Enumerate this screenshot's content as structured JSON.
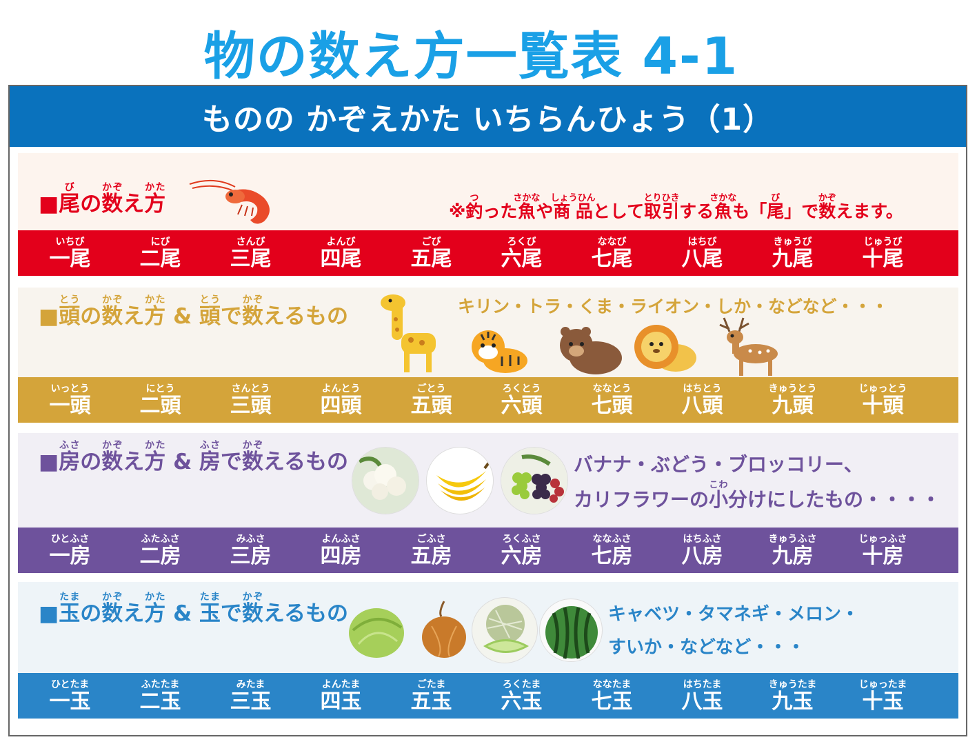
{
  "title": "物の数え方一覧表 4-1",
  "banner": "ものの かぞえかた いちらんひょう（1）",
  "colors": {
    "red": "#e3001b",
    "gold": "#d4a43a",
    "purple": "#6e529c",
    "blue": "#2a85c8"
  },
  "sections": {
    "bi": {
      "heading_mark": "■",
      "heading_parts": [
        {
          "k": "尾",
          "r": "び"
        },
        {
          "k": "の"
        },
        {
          "k": "数",
          "r": "かぞ"
        },
        {
          "k": "え"
        },
        {
          "k": "方",
          "r": "かた"
        }
      ],
      "note_parts": [
        {
          "k": "※"
        },
        {
          "k": "釣",
          "r": "つ"
        },
        {
          "k": "った"
        },
        {
          "k": "魚",
          "r": "さかな"
        },
        {
          "k": "や"
        },
        {
          "k": "商品",
          "r": "しょうひん"
        },
        {
          "k": "として"
        },
        {
          "k": "取引",
          "r": "とりひき"
        },
        {
          "k": "する"
        },
        {
          "k": "魚",
          "r": "さかな"
        },
        {
          "k": "も「"
        },
        {
          "k": "尾",
          "r": "び"
        },
        {
          "k": "」で"
        },
        {
          "k": "数",
          "r": "かぞ"
        },
        {
          "k": "えます。"
        }
      ],
      "counters": [
        {
          "reading": "いちび",
          "kanji": "一尾"
        },
        {
          "reading": "にび",
          "kanji": "二尾"
        },
        {
          "reading": "さんび",
          "kanji": "三尾"
        },
        {
          "reading": "よんび",
          "kanji": "四尾"
        },
        {
          "reading": "ごび",
          "kanji": "五尾"
        },
        {
          "reading": "ろくび",
          "kanji": "六尾"
        },
        {
          "reading": "ななび",
          "kanji": "七尾"
        },
        {
          "reading": "はちび",
          "kanji": "八尾"
        },
        {
          "reading": "きゅうび",
          "kanji": "九尾"
        },
        {
          "reading": "じゅうび",
          "kanji": "十尾"
        }
      ]
    },
    "tou": {
      "heading_mark": "■",
      "heading_parts": [
        {
          "k": "頭",
          "r": "とう"
        },
        {
          "k": "の"
        },
        {
          "k": "数",
          "r": "かぞ"
        },
        {
          "k": "え"
        },
        {
          "k": "方",
          "r": "かた"
        },
        {
          "k": " & "
        },
        {
          "k": "頭",
          "r": "とう"
        },
        {
          "k": "で"
        },
        {
          "k": "数",
          "r": "かぞ"
        },
        {
          "k": "えるもの"
        }
      ],
      "note": "キリン・トラ・くま・ライオン・しか・などなど・・・",
      "counters": [
        {
          "reading": "いっとう",
          "kanji": "一頭"
        },
        {
          "reading": "にとう",
          "kanji": "二頭"
        },
        {
          "reading": "さんとう",
          "kanji": "三頭"
        },
        {
          "reading": "よんとう",
          "kanji": "四頭"
        },
        {
          "reading": "ごとう",
          "kanji": "五頭"
        },
        {
          "reading": "ろくとう",
          "kanji": "六頭"
        },
        {
          "reading": "ななとう",
          "kanji": "七頭"
        },
        {
          "reading": "はちとう",
          "kanji": "八頭"
        },
        {
          "reading": "きゅうとう",
          "kanji": "九頭"
        },
        {
          "reading": "じゅっとう",
          "kanji": "十頭"
        }
      ]
    },
    "fusa": {
      "heading_mark": "■",
      "heading_parts": [
        {
          "k": "房",
          "r": "ふさ"
        },
        {
          "k": "の"
        },
        {
          "k": "数",
          "r": "かぞ"
        },
        {
          "k": "え"
        },
        {
          "k": "方",
          "r": "かた"
        },
        {
          "k": " & "
        },
        {
          "k": "房",
          "r": "ふさ"
        },
        {
          "k": "で"
        },
        {
          "k": "数",
          "r": "かぞ"
        },
        {
          "k": "えるもの"
        }
      ],
      "note_line1": "バナナ・ぶどう・ブロッコリー、",
      "note_line2_parts": [
        {
          "k": "カリフラワーの"
        },
        {
          "k": "小",
          "r": "こわ"
        },
        {
          "k": "分けにしたもの・・・・"
        }
      ],
      "counters": [
        {
          "reading": "ひとふさ",
          "kanji": "一房"
        },
        {
          "reading": "ふたふさ",
          "kanji": "二房"
        },
        {
          "reading": "みふさ",
          "kanji": "三房"
        },
        {
          "reading": "よんふさ",
          "kanji": "四房"
        },
        {
          "reading": "ごふさ",
          "kanji": "五房"
        },
        {
          "reading": "ろくふさ",
          "kanji": "六房"
        },
        {
          "reading": "ななふさ",
          "kanji": "七房"
        },
        {
          "reading": "はちふさ",
          "kanji": "八房"
        },
        {
          "reading": "きゅうふさ",
          "kanji": "九房"
        },
        {
          "reading": "じゅっふさ",
          "kanji": "十房"
        }
      ]
    },
    "tama": {
      "heading_mark": "■",
      "heading_parts": [
        {
          "k": "玉",
          "r": "たま"
        },
        {
          "k": "の"
        },
        {
          "k": "数",
          "r": "かぞ"
        },
        {
          "k": "え"
        },
        {
          "k": "方",
          "r": "かた"
        },
        {
          "k": " & "
        },
        {
          "k": "玉",
          "r": "たま"
        },
        {
          "k": "で"
        },
        {
          "k": "数",
          "r": "かぞ"
        },
        {
          "k": "えるもの"
        }
      ],
      "note_line1": "キャベツ・タマネギ・メロン・",
      "note_line2": "すいか・などなど・・・",
      "counters": [
        {
          "reading": "ひとたま",
          "kanji": "一玉"
        },
        {
          "reading": "ふたたま",
          "kanji": "二玉"
        },
        {
          "reading": "みたま",
          "kanji": "三玉"
        },
        {
          "reading": "よんたま",
          "kanji": "四玉"
        },
        {
          "reading": "ごたま",
          "kanji": "五玉"
        },
        {
          "reading": "ろくたま",
          "kanji": "六玉"
        },
        {
          "reading": "ななたま",
          "kanji": "七玉"
        },
        {
          "reading": "はちたま",
          "kanji": "八玉"
        },
        {
          "reading": "きゅうたま",
          "kanji": "九玉"
        },
        {
          "reading": "じゅったま",
          "kanji": "十玉"
        }
      ]
    }
  },
  "illustrations": {
    "bi": [
      "shrimp"
    ],
    "tou": [
      "giraffe",
      "tiger",
      "bear",
      "lion",
      "deer"
    ],
    "fusa": [
      "cauliflower",
      "banana",
      "grapes"
    ],
    "tama": [
      "cabbage",
      "onion",
      "melon",
      "watermelon"
    ]
  }
}
